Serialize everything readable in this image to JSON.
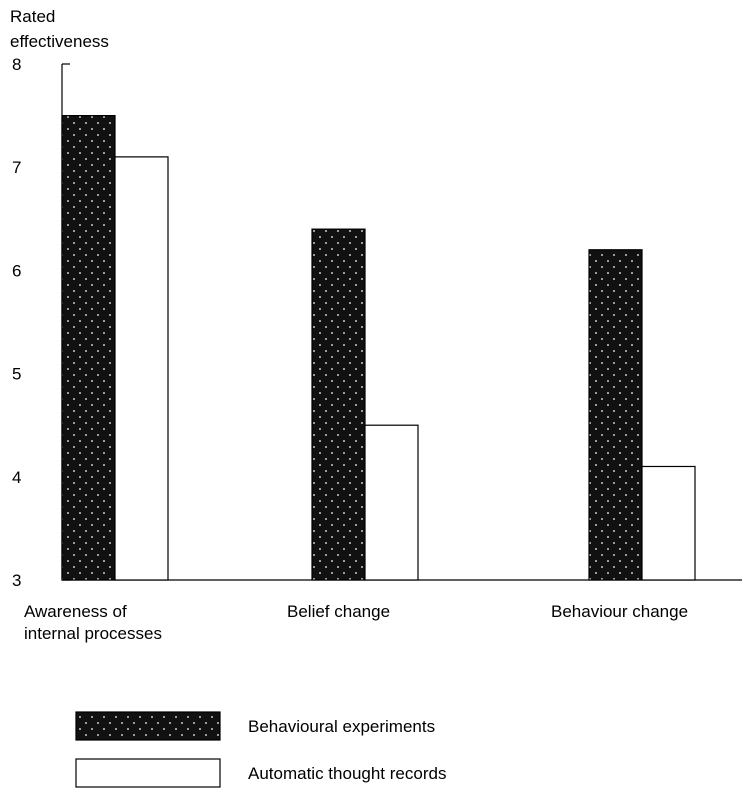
{
  "chart_data": {
    "type": "bar",
    "ylabel": [
      "Rated",
      "effectiveness"
    ],
    "ylim": [
      3,
      8
    ],
    "yticks": [
      3,
      4,
      5,
      6,
      7,
      8
    ],
    "categories": [
      [
        "Awareness of",
        "internal processes"
      ],
      [
        "Belief change"
      ],
      [
        "Behaviour change"
      ]
    ],
    "series": [
      {
        "name": "Behavioural experiments",
        "values": [
          7.5,
          6.4,
          6.2
        ],
        "fill": "#111111",
        "pattern": "white dots"
      },
      {
        "name": "Automatic thought records",
        "values": [
          7.1,
          4.5,
          4.1
        ],
        "fill": "#ffffff"
      }
    ],
    "grid": false,
    "legend": "bottom"
  }
}
